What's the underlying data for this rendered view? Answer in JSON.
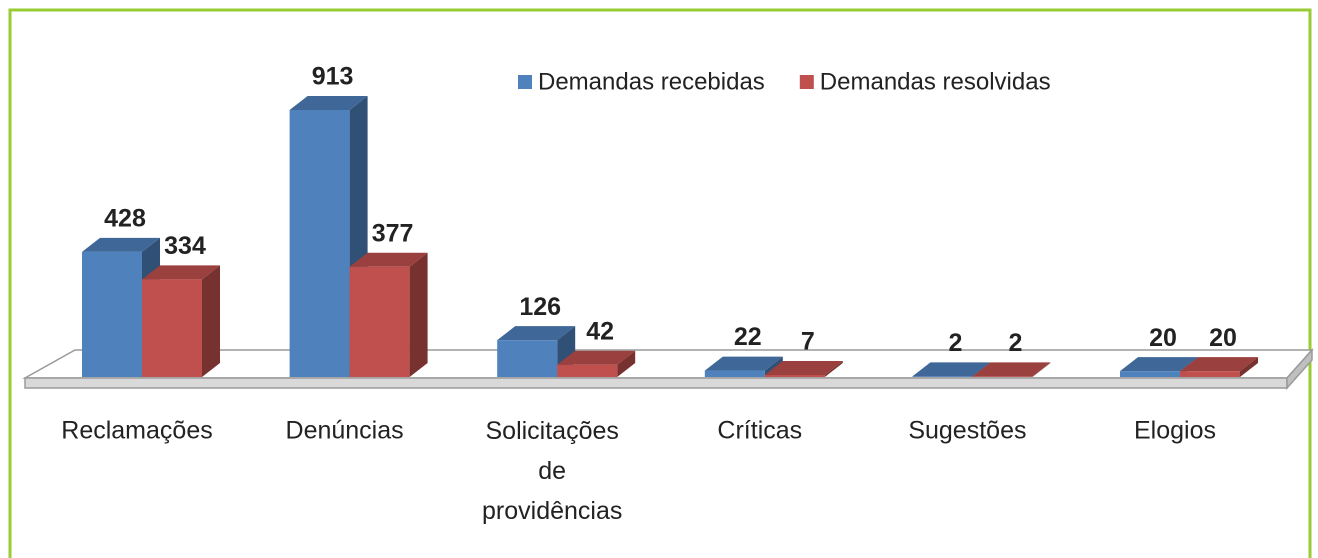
{
  "chart_data": {
    "type": "bar3d",
    "categories": [
      "Reclamações",
      "Denúncias",
      "Solicitações de providências",
      "Críticas",
      "Sugestões",
      "Elogios"
    ],
    "series": [
      {
        "name": "Demandas recebidas",
        "color": "#4f81bd",
        "values": [
          428,
          913,
          126,
          22,
          2,
          20
        ]
      },
      {
        "name": "Demandas resolvidas",
        "color": "#c0504d",
        "values": [
          334,
          377,
          42,
          7,
          2,
          20
        ]
      }
    ],
    "legend": "top-right"
  }
}
